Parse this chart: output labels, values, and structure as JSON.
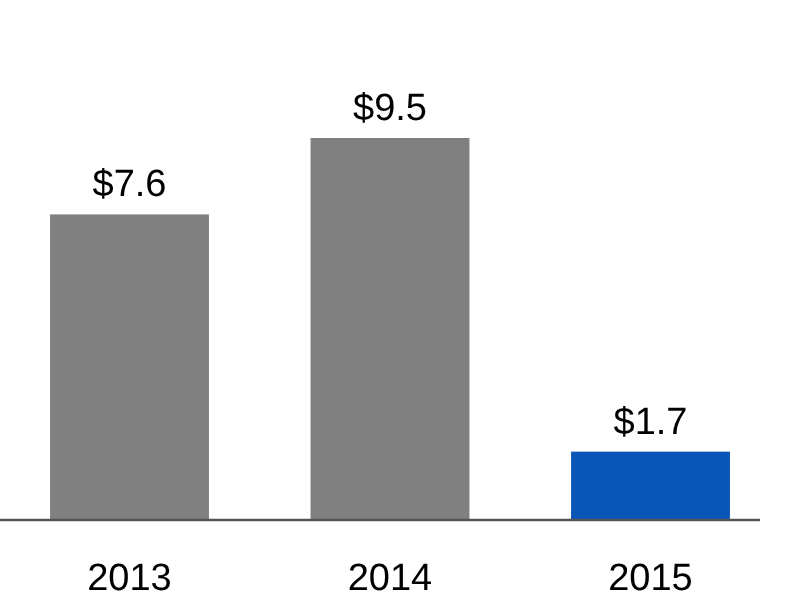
{
  "chart_data": {
    "type": "bar",
    "categories": [
      "2013",
      "2014",
      "2015"
    ],
    "values": [
      7.6,
      9.5,
      1.7
    ],
    "colors": [
      "#808080",
      "#808080",
      "#0a56b8"
    ],
    "value_labels": [
      "$7.6",
      "$9.5",
      "$1.7"
    ]
  }
}
